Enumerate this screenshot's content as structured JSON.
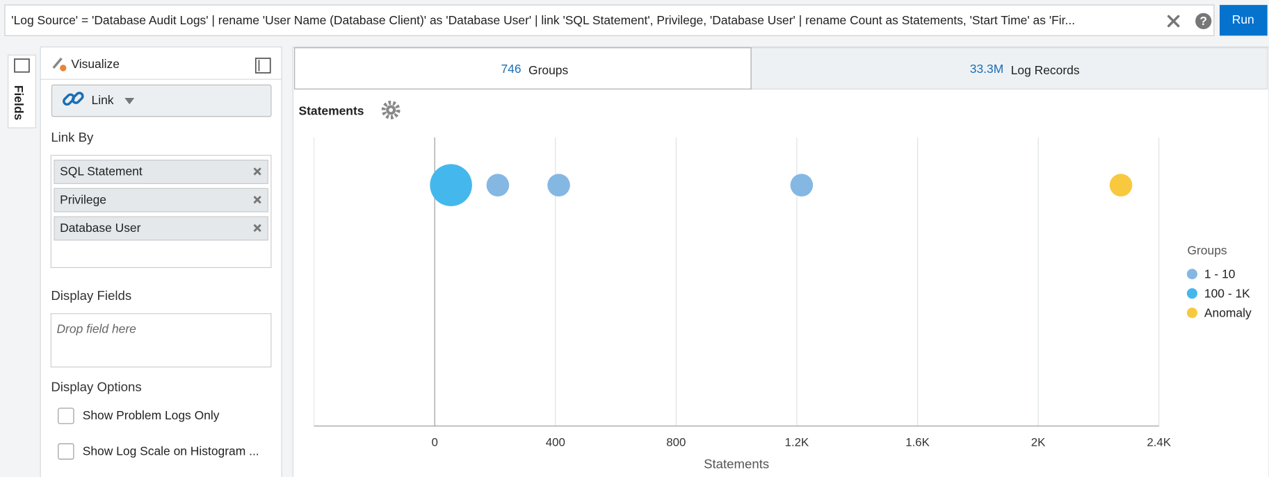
{
  "query": "'Log Source' = 'Database Audit Logs' | rename 'User Name (Database Client)' as 'Database User' | link 'SQL Statement', Privilege, 'Database User' | rename Count as Statements, 'Start Time' as 'Fir...",
  "run_button": "Run",
  "fields_tab": "Fields",
  "panel": {
    "title": "Visualize",
    "visualization": "Link",
    "link_by_label": "Link By",
    "link_by": [
      "SQL Statement",
      "Privilege",
      "Database User"
    ],
    "display_fields_label": "Display Fields",
    "display_fields_placeholder": "Drop field here",
    "display_options_label": "Display Options",
    "options": [
      "Show Problem Logs Only",
      "Show Log Scale on Histogram ..."
    ]
  },
  "summary": [
    {
      "value": "746",
      "label": "Groups"
    },
    {
      "value": "33.3M",
      "label": "Log Records"
    }
  ],
  "chart_data": {
    "type": "scatter",
    "title": "Statements",
    "x_label": "Statements",
    "xlim": [
      -400,
      2400
    ],
    "xticks": [
      0,
      400,
      800,
      {
        "value": 1200,
        "label": "1.2K"
      },
      {
        "value": 1600,
        "label": "1.6K"
      },
      {
        "value": 2000,
        "label": "2K"
      },
      {
        "value": 2400,
        "label": "2.4K"
      }
    ],
    "grid": true,
    "legend_title": "Groups",
    "legend": "right",
    "series": [
      {
        "name": "1 - 10",
        "color": "#85b7e3",
        "values": [
          209,
          411,
          1216
        ]
      },
      {
        "name": "100 - 1K",
        "color": "#44b8ec",
        "values": [
          54
        ]
      },
      {
        "name": "Anomaly",
        "color": "#f8c93f",
        "values": [
          2274
        ]
      }
    ]
  }
}
